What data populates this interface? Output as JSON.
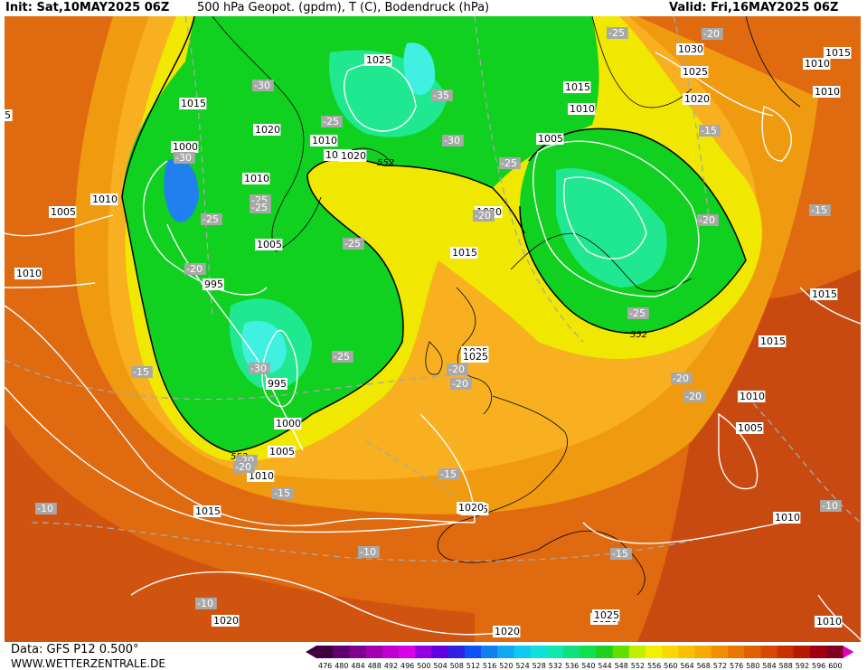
{
  "header": {
    "init": "Init: Sat,10MAY2025 06Z",
    "title": "500 hPa Geopot. (gpdm), T (C), Bodendruck (hPa)",
    "valid": "Valid: Fri,16MAY2025 06Z"
  },
  "footer": {
    "data_source": "Data: GFS P12 0.500°",
    "website": "WWW.WETTERZENTRALE.DE"
  },
  "colorbar": {
    "values": [
      "476",
      "480",
      "484",
      "488",
      "492",
      "496",
      "500",
      "504",
      "508",
      "512",
      "516",
      "520",
      "524",
      "528",
      "532",
      "536",
      "540",
      "544",
      "548",
      "552",
      "556",
      "560",
      "564",
      "568",
      "572",
      "576",
      "580",
      "584",
      "588",
      "592",
      "596",
      "600"
    ],
    "colors": [
      "#400040",
      "#600070",
      "#800090",
      "#a000b0",
      "#c000d0",
      "#d800e8",
      "#9000e0",
      "#6000e0",
      "#3020e0",
      "#1050f0",
      "#1080f0",
      "#10a8f0",
      "#10c8f0",
      "#10e0e0",
      "#10e8b0",
      "#10e080",
      "#10e050",
      "#20d020",
      "#60e000",
      "#c0f000",
      "#f0f000",
      "#f8d800",
      "#f8c000",
      "#f8a800",
      "#f09000",
      "#e87800",
      "#e06000",
      "#d84800",
      "#c83000",
      "#b81800",
      "#a00010",
      "#800020"
    ]
  },
  "map_colors": {
    "ocean_warm": "#e06a10",
    "ocean_hot": "#c84a10",
    "orange": "#f09a10",
    "light_orange": "#f8b020",
    "yellow": "#f0e800",
    "green": "#10d020",
    "aqua": "#20e890",
    "cyan": "#40f0e0",
    "blue": "#2080f0",
    "isobar": "#ffffff",
    "isotherm": "#a8a8a8",
    "coast": "#000000"
  },
  "contour_label_552": "552",
  "pressure_labels": [
    {
      "text": "1030"
    },
    {
      "text": "1025"
    },
    {
      "text": "1020"
    },
    {
      "text": "1015"
    },
    {
      "text": "1010"
    },
    {
      "text": "1010"
    },
    {
      "text": "1015"
    },
    {
      "text": "1010"
    },
    {
      "text": "1025"
    },
    {
      "text": "1020"
    },
    {
      "text": "1015"
    },
    {
      "text": "1010"
    },
    {
      "text": "1005"
    },
    {
      "text": "1000"
    },
    {
      "text": "1010"
    },
    {
      "text": "1005"
    },
    {
      "text": "1010"
    },
    {
      "text": "1020"
    },
    {
      "text": "1015"
    },
    {
      "text": "1020"
    },
    {
      "text": "1020"
    },
    {
      "text": "1025"
    },
    {
      "text": "1005"
    },
    {
      "text": "995"
    },
    {
      "text": "995"
    },
    {
      "text": "1000"
    },
    {
      "text": "1005"
    },
    {
      "text": "1010"
    },
    {
      "text": "1015"
    },
    {
      "text": "1010"
    },
    {
      "text": "1020"
    },
    {
      "text": "1025"
    },
    {
      "text": "1015"
    },
    {
      "text": "1010"
    },
    {
      "text": "1005"
    },
    {
      "text": "1010"
    },
    {
      "text": "1020"
    },
    {
      "text": "1020"
    },
    {
      "text": "1020"
    },
    {
      "text": "1010"
    },
    {
      "text": "1025"
    },
    {
      "text": "1020"
    },
    {
      "text": "1015"
    },
    {
      "text": "1025"
    },
    {
      "text": "5"
    }
  ],
  "temperature_labels": [
    {
      "text": "-25"
    },
    {
      "text": "-20"
    },
    {
      "text": "-30"
    },
    {
      "text": "-35"
    },
    {
      "text": "-25"
    },
    {
      "text": "-30"
    },
    {
      "text": "-25"
    },
    {
      "text": "-25"
    },
    {
      "text": "-25"
    },
    {
      "text": "-30"
    },
    {
      "text": "-25"
    },
    {
      "text": "-20"
    },
    {
      "text": "-20"
    },
    {
      "text": "-15"
    },
    {
      "text": "-20"
    },
    {
      "text": "-25"
    },
    {
      "text": "-30"
    },
    {
      "text": "-25"
    },
    {
      "text": "-15"
    },
    {
      "text": "-20"
    },
    {
      "text": "-20"
    },
    {
      "text": "-15"
    },
    {
      "text": "-20"
    },
    {
      "text": "-20"
    },
    {
      "text": "-15"
    },
    {
      "text": "-10"
    },
    {
      "text": "-10"
    },
    {
      "text": "-10"
    },
    {
      "text": "-15"
    },
    {
      "text": "-10"
    },
    {
      "text": "-25"
    },
    {
      "text": "-20"
    },
    {
      "text": "-15"
    },
    {
      "text": "-20"
    }
  ]
}
